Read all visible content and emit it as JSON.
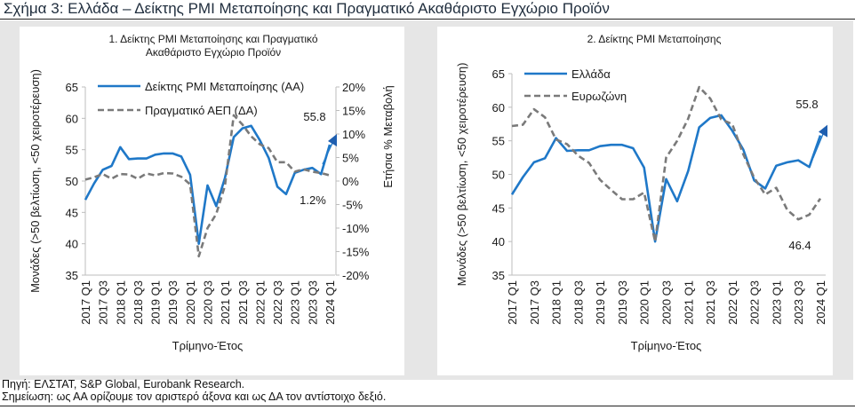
{
  "figure": {
    "title": "Σχήμα 3: Ελλάδα – Δείκτης PMI Μεταποίησης και Πραγματικό Ακαθάριστο Εγχώριο Προϊόν",
    "source": "Πηγή: ΕΛΣΤΑΤ, S&P Global, Eurobank Research.",
    "footnote": "Σημείωση: ως ΑΑ ορίζουμε τον αριστερό άξονα και ως ΔΑ τον αντίστοιχο δεξιό."
  },
  "chart_data": [
    {
      "type": "line",
      "title_lines": [
        "1. Δείκτης PMI Μεταποίησης και Πραγματικό",
        "Ακαθάριστο Εγχώριο Προϊόν"
      ],
      "xlabel": "Τρίμηνο-Έτος",
      "ylabel": "Μονάδες (>50 βελτίωση, <50 χειροτέρευση)",
      "y2label": "Ετήσια % Μεταβολή",
      "ylim": [
        35,
        65
      ],
      "yticks": [
        "65",
        "60",
        "55",
        "50",
        "45",
        "40",
        "35"
      ],
      "y2lim": [
        -20,
        20
      ],
      "y2ticks": [
        "20%",
        "15%",
        "10%",
        "5%",
        "0%",
        "-5%",
        "-10%",
        "-15%",
        "-20%"
      ],
      "categories": [
        "2017 Q1",
        "2017 Q2",
        "2017 Q3",
        "2017 Q4",
        "2018 Q1",
        "2018 Q2",
        "2018 Q3",
        "2018 Q4",
        "2019 Q1",
        "2019 Q2",
        "2019 Q3",
        "2019 Q4",
        "2020 Q1",
        "2020 Q2",
        "2020 Q3",
        "2020 Q4",
        "2021 Q1",
        "2021 Q2",
        "2021 Q3",
        "2021 Q4",
        "2022 Q1",
        "2022 Q2",
        "2022 Q3",
        "2022 Q4",
        "2023 Q1",
        "2023 Q2",
        "2023 Q3",
        "2023 Q4",
        "2024 Q1"
      ],
      "tick_labels": [
        "2017 Q1",
        "2017 Q3",
        "2018 Q1",
        "2018 Q3",
        "2019 Q1",
        "2019 Q3",
        "2020 Q1",
        "2020 Q3",
        "2021 Q1",
        "2021 Q3",
        "2022 Q1",
        "2022 Q3",
        "2023 Q1",
        "2023 Q3",
        "2024 Q1"
      ],
      "legend_position": "top",
      "series": [
        {
          "name": "Δείκτης PMI Μεταποίησης (ΑΑ)",
          "axis": "left",
          "style": "solid",
          "color": "#1f78c8",
          "values": [
            47.0,
            49.6,
            51.8,
            52.4,
            55.4,
            53.5,
            53.6,
            53.6,
            54.2,
            54.4,
            54.4,
            53.9,
            51.0,
            40.0,
            49.3,
            46.0,
            50.5,
            57.0,
            58.4,
            58.8,
            56.5,
            53.7,
            49.1,
            47.9,
            51.3,
            51.8,
            52.1,
            51.1,
            55.8
          ]
        },
        {
          "name": "Πραγματικό ΑΕΠ (ΔΑ)",
          "axis": "right",
          "style": "dashed",
          "color": "#7a7a7a",
          "values": [
            0.3,
            0.8,
            1.5,
            0.5,
            1.5,
            1.4,
            0.5,
            1.6,
            1.2,
            1.7,
            1.6,
            0.9,
            -0.7,
            -16.0,
            -10.0,
            -7.0,
            -1.0,
            14.0,
            12.0,
            9.5,
            7.8,
            7.0,
            4.0,
            4.0,
            2.0,
            2.5,
            2.0,
            1.7,
            1.2
          ]
        }
      ],
      "annotations": [
        "55.8",
        "1.2%"
      ]
    },
    {
      "type": "line",
      "title_lines": [
        "2. Δείκτης PMI Μεταποίησης"
      ],
      "xlabel": "Τρίμηνο-Έτος",
      "ylabel": "Μονάδες (>50 βελτίωση, <50 χειροτέρευση)",
      "ylim": [
        35,
        65
      ],
      "yticks": [
        "65",
        "60",
        "55",
        "50",
        "45",
        "40",
        "35"
      ],
      "categories": [
        "2017 Q1",
        "2017 Q2",
        "2017 Q3",
        "2017 Q4",
        "2018 Q1",
        "2018 Q2",
        "2018 Q3",
        "2018 Q4",
        "2019 Q1",
        "2019 Q2",
        "2019 Q3",
        "2019 Q4",
        "2020 Q1",
        "2020 Q2",
        "2020 Q3",
        "2020 Q4",
        "2021 Q1",
        "2021 Q2",
        "2021 Q3",
        "2021 Q4",
        "2022 Q1",
        "2022 Q2",
        "2022 Q3",
        "2022 Q4",
        "2023 Q1",
        "2023 Q2",
        "2023 Q3",
        "2023 Q4",
        "2024 Q1"
      ],
      "tick_labels": [
        "2017 Q1",
        "2017 Q3",
        "2018 Q1",
        "2018 Q3",
        "2019 Q1",
        "2019 Q3",
        "2020 Q1",
        "2020 Q3",
        "2021 Q1",
        "2021 Q3",
        "2022 Q1",
        "2022 Q3",
        "2023 Q1",
        "2023 Q3",
        "2024 Q1"
      ],
      "legend_position": "top",
      "series": [
        {
          "name": "Ελλάδα",
          "axis": "left",
          "style": "solid",
          "color": "#1f78c8",
          "values": [
            47.0,
            49.6,
            51.8,
            52.4,
            55.4,
            53.5,
            53.6,
            53.6,
            54.2,
            54.4,
            54.4,
            53.9,
            51.0,
            40.0,
            49.3,
            46.0,
            50.5,
            57.0,
            58.4,
            58.8,
            56.5,
            53.7,
            49.1,
            47.9,
            51.3,
            51.8,
            52.1,
            51.1,
            55.8
          ]
        },
        {
          "name": "Ευρωζώνη",
          "axis": "left",
          "style": "dashed",
          "color": "#7a7a7a",
          "values": [
            57.2,
            57.4,
            59.7,
            58.5,
            55.2,
            54.5,
            52.8,
            51.7,
            49.2,
            47.7,
            46.3,
            46.3,
            47.3,
            40.0,
            52.5,
            55.0,
            58.3,
            63.0,
            61.3,
            58.2,
            57.5,
            53.0,
            49.5,
            47.0,
            48.0,
            44.7,
            43.3,
            44.0,
            46.4
          ]
        }
      ],
      "annotations": [
        "55.8",
        "46.4"
      ]
    }
  ]
}
